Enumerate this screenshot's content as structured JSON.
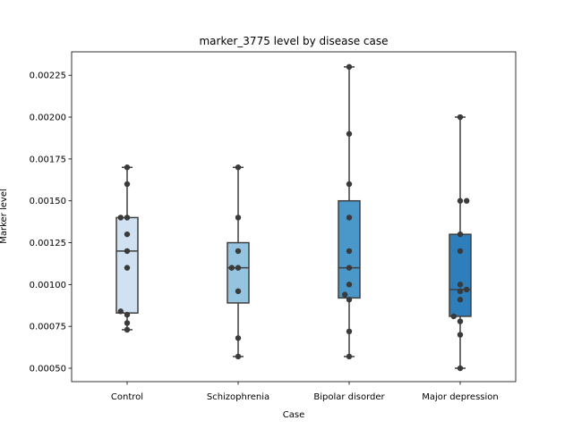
{
  "chart_data": {
    "type": "box",
    "title": "marker_3775 level by disease case",
    "xlabel": "Case",
    "ylabel": "Marker level",
    "ylim": [
      0.00042,
      0.00239
    ],
    "yticks": [
      0.0005,
      0.00075,
      0.001,
      0.00125,
      0.0015,
      0.00175,
      0.002,
      0.00225
    ],
    "ytick_labels": [
      "0.00050",
      "0.00075",
      "0.00100",
      "0.00125",
      "0.00150",
      "0.00175",
      "0.00200",
      "0.00225"
    ],
    "categories": [
      "Control",
      "Schizophrenia",
      "Bipolar disorder",
      "Major depression"
    ],
    "colors": [
      "#d0e1f2",
      "#94c4df",
      "#4a98c9",
      "#2e7ebc"
    ],
    "grid": false,
    "boxes": [
      {
        "whisker_low": 0.00073,
        "q1": 0.00083,
        "median": 0.0012,
        "q3": 0.0014,
        "whisker_high": 0.0017
      },
      {
        "whisker_low": 0.00057,
        "q1": 0.00089,
        "median": 0.0011,
        "q3": 0.00125,
        "whisker_high": 0.0017
      },
      {
        "whisker_low": 0.00057,
        "q1": 0.00092,
        "median": 0.0011,
        "q3": 0.0015,
        "whisker_high": 0.0023
      },
      {
        "whisker_low": 0.0005,
        "q1": 0.00081,
        "median": 0.00097,
        "q3": 0.0013,
        "whisker_high": 0.002
      }
    ],
    "points": [
      [
        {
          "dx": 0,
          "y": 0.0017
        },
        {
          "dx": 0,
          "y": 0.0016
        },
        {
          "dx": -0.6,
          "y": 0.0014
        },
        {
          "dx": 0,
          "y": 0.0014
        },
        {
          "dx": 0,
          "y": 0.0013
        },
        {
          "dx": 0,
          "y": 0.0012
        },
        {
          "dx": 0,
          "y": 0.0011
        },
        {
          "dx": -0.6,
          "y": 0.00084
        },
        {
          "dx": 0,
          "y": 0.00082
        },
        {
          "dx": 0,
          "y": 0.00077
        },
        {
          "dx": 0,
          "y": 0.00073
        }
      ],
      [
        {
          "dx": 0,
          "y": 0.0017
        },
        {
          "dx": 0,
          "y": 0.0014
        },
        {
          "dx": 0,
          "y": 0.0012
        },
        {
          "dx": -0.6,
          "y": 0.0011
        },
        {
          "dx": 0,
          "y": 0.0011
        },
        {
          "dx": 0,
          "y": 0.00096
        },
        {
          "dx": 0,
          "y": 0.00068
        },
        {
          "dx": 0,
          "y": 0.00057
        }
      ],
      [
        {
          "dx": 0,
          "y": 0.0023
        },
        {
          "dx": 0,
          "y": 0.0019
        },
        {
          "dx": 0,
          "y": 0.0016
        },
        {
          "dx": 0,
          "y": 0.0014
        },
        {
          "dx": 0,
          "y": 0.0012
        },
        {
          "dx": 0,
          "y": 0.0011
        },
        {
          "dx": 0,
          "y": 0.001
        },
        {
          "dx": -0.4,
          "y": 0.00094
        },
        {
          "dx": 0,
          "y": 0.00091
        },
        {
          "dx": 0,
          "y": 0.00072
        },
        {
          "dx": 0,
          "y": 0.00057
        }
      ],
      [
        {
          "dx": 0,
          "y": 0.002
        },
        {
          "dx": 0,
          "y": 0.0015
        },
        {
          "dx": 0.6,
          "y": 0.0015
        },
        {
          "dx": 0,
          "y": 0.0013
        },
        {
          "dx": 0,
          "y": 0.0012
        },
        {
          "dx": 0,
          "y": 0.001
        },
        {
          "dx": 0,
          "y": 0.00096
        },
        {
          "dx": 0.6,
          "y": 0.00097
        },
        {
          "dx": 0,
          "y": 0.00091
        },
        {
          "dx": -0.6,
          "y": 0.00081
        },
        {
          "dx": 0,
          "y": 0.00078
        },
        {
          "dx": 0,
          "y": 0.0007
        },
        {
          "dx": 0,
          "y": 0.0005
        }
      ]
    ]
  }
}
